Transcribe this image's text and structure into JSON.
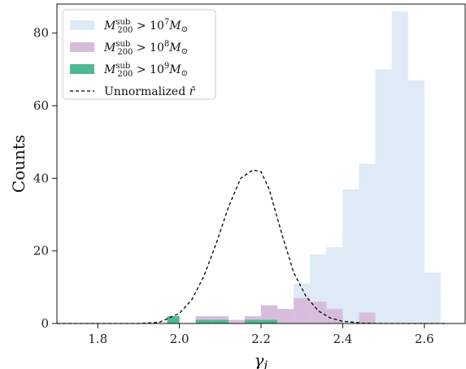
{
  "chart_data": {
    "type": "histogram",
    "xlabel": "γi",
    "ylabel": "Counts",
    "xlim": [
      1.7,
      2.7
    ],
    "ylim": [
      0,
      88
    ],
    "xticks": [
      1.8,
      2.0,
      2.2,
      2.4,
      2.6
    ],
    "xtick_labels": [
      "1.8",
      "2.0",
      "2.2",
      "2.4",
      "2.6"
    ],
    "yticks": [
      0,
      20,
      40,
      60,
      80
    ],
    "ytick_labels": [
      "0",
      "20",
      "40",
      "60",
      "80"
    ],
    "bin_edges": [
      1.97,
      2.0,
      2.04,
      2.08,
      2.12,
      2.16,
      2.2,
      2.24,
      2.28,
      2.32,
      2.36,
      2.4,
      2.44,
      2.48,
      2.52,
      2.56,
      2.6,
      2.64
    ],
    "series": [
      {
        "name": "M200sub > 10^7 M⊙",
        "color": "#deeaf5",
        "values": [
          2,
          0,
          2,
          2,
          0,
          2,
          5,
          4,
          11,
          19,
          21,
          37,
          44,
          70,
          86,
          67,
          14
        ]
      },
      {
        "name": "M200sub > 10^8 M⊙",
        "color": "#d7bddc",
        "values": [
          2,
          0,
          2,
          2,
          1,
          2,
          5,
          4,
          7,
          6,
          4,
          0,
          3,
          0,
          0,
          0,
          0
        ]
      },
      {
        "name": "M200sub > 10^9 M⊙",
        "color": "#4db894",
        "values": [
          2,
          0,
          1,
          1,
          0,
          1,
          1,
          0,
          0,
          0,
          0,
          0,
          0,
          0,
          0,
          0,
          0
        ]
      }
    ],
    "curve": {
      "name": "Unnormalized r̂",
      "style": "dashed",
      "color": "#000000",
      "x": [
        1.7,
        1.75,
        1.8,
        1.85,
        1.9,
        1.95,
        2.0,
        2.03,
        2.06,
        2.09,
        2.12,
        2.15,
        2.18,
        2.2,
        2.22,
        2.25,
        2.28,
        2.31,
        2.34,
        2.37,
        2.4,
        2.45,
        2.5,
        2.55,
        2.6,
        2.65
      ],
      "y": [
        0,
        0,
        0,
        0,
        0,
        0.3,
        2.8,
        6.5,
        13,
        22,
        32,
        40,
        42.3,
        41.8,
        37,
        25,
        14,
        7.5,
        3.5,
        1.5,
        0.6,
        0.1,
        0,
        0,
        0,
        0
      ]
    },
    "legend": {
      "position": "top-left",
      "entries": [
        {
          "base": "M",
          "sub": "200",
          "sup": "sub",
          "rel": " > 10",
          "exp": "7",
          "tail": "M",
          "tail_sub": "⊙",
          "kind": "patch",
          "color": "#deeaf5"
        },
        {
          "base": "M",
          "sub": "200",
          "sup": "sub",
          "rel": " > 10",
          "exp": "8",
          "tail": "M",
          "tail_sub": "⊙",
          "kind": "patch",
          "color": "#d7bddc"
        },
        {
          "base": "M",
          "sub": "200",
          "sup": "sub",
          "rel": " > 10",
          "exp": "9",
          "tail": "M",
          "tail_sub": "⊙",
          "kind": "patch",
          "color": "#4db894"
        },
        {
          "label": "Unnormalized ",
          "hat": "r̂",
          "kind": "dashed",
          "color": "#000000"
        }
      ]
    },
    "grid": false
  }
}
